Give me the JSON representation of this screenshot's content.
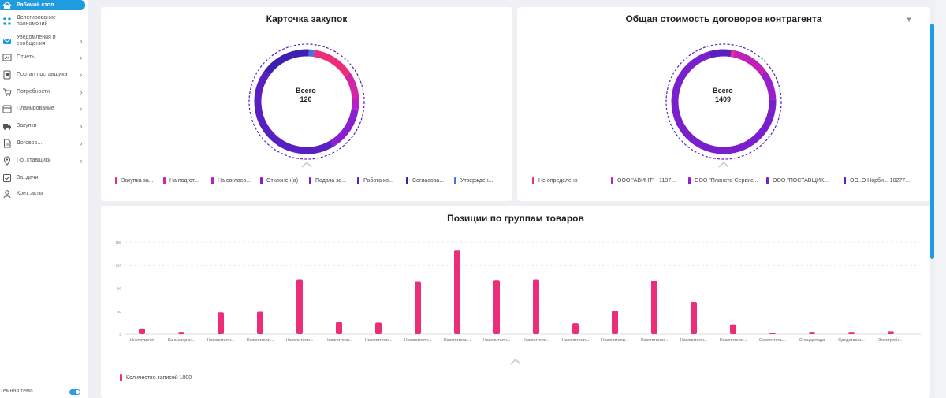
{
  "sidebar": {
    "items": [
      {
        "label": "Рабочий стол",
        "icon": "home-icon",
        "active": true
      },
      {
        "label": "Делегирование полномочий",
        "icon": "delegation-icon"
      },
      {
        "label": "Уведомления и сообщения",
        "icon": "mail-icon"
      },
      {
        "label": "Отчеты",
        "icon": "chart-icon"
      },
      {
        "label": "Портал поставщика",
        "icon": "portal-icon"
      },
      {
        "label": "Потребности",
        "icon": "cart-icon"
      },
      {
        "label": "Планирование",
        "icon": "calendar-icon"
      },
      {
        "label": "Закупки",
        "icon": "truck-icon"
      },
      {
        "label": "Договор...",
        "icon": "document-icon"
      },
      {
        "label": "По..ставщики",
        "icon": "location-icon"
      },
      {
        "label": "За..дачи",
        "icon": "task-icon"
      },
      {
        "label": "Конт..акты",
        "icon": "contacts-icon"
      }
    ],
    "theme_label": "Темная тема"
  },
  "colors": {
    "accent": "#1f9be0",
    "pink": "#ec2d7a",
    "magenta": "#c021b8",
    "purple": "#8a1fcc",
    "violet": "#6a1fd0",
    "indigo": "#3f1fb0",
    "blue": "#4a6ee6"
  },
  "card1": {
    "title": "Карточка закупок",
    "center_label": "Всего",
    "center_value": "120",
    "legend": [
      {
        "label": "Закупка за...",
        "color": "#ec2d7a"
      },
      {
        "label": "На подгот...",
        "color": "#d424a6"
      },
      {
        "label": "На согласо...",
        "color": "#b521c7"
      },
      {
        "label": "Отклонен(а)",
        "color": "#8a1fcc"
      },
      {
        "label": "Подача за...",
        "color": "#7a1fcc"
      },
      {
        "label": "Работа ко...",
        "color": "#5a1fc0"
      },
      {
        "label": "Согласова...",
        "color": "#3f1fb0"
      },
      {
        "label": "Утвержден...",
        "color": "#4a6ee6"
      }
    ]
  },
  "card2": {
    "title": "Общая стоимость договоров контрагента",
    "center_label": "Всего",
    "center_value": "1409",
    "legend": [
      {
        "label": "Не определено",
        "color": "#ec2d7a"
      },
      {
        "label": "ООО \"АВИНТ\" - 1137...",
        "color": "#c021b8"
      },
      {
        "label": "ООО \"Планета-Сервис...",
        "color": "#9a1fcc"
      },
      {
        "label": "ООО \"ПОСТАВЩИК...",
        "color": "#7a1fcc"
      },
      {
        "label": "ОО..О Норби... 10277...",
        "color": "#5a1fc0"
      }
    ]
  },
  "chart_data": [
    {
      "type": "pie",
      "title": "Карточка закупок",
      "center_text": "Всего 120",
      "categories": [
        "Закупка за...",
        "На подгот...",
        "На согласо...",
        "Отклонен(а)",
        "Подача за...",
        "Работа ко...",
        "Согласова...",
        "Утвержден..."
      ],
      "values": [
        16,
        10,
        4,
        16,
        1,
        52,
        19,
        2
      ]
    },
    {
      "type": "pie",
      "title": "Общая стоимость договоров контрагента",
      "center_text": "Всего 1409",
      "categories": [
        "Не определено",
        "ООО \"АВИНТ\" - 1137...",
        "ООО \"Планета-Сервис...",
        "ООО \"ПОСТАВЩИК...",
        "ОО..О Норби... 10277..."
      ],
      "values": [
        14,
        165,
        130,
        1000,
        100
      ]
    },
    {
      "type": "bar",
      "title": "Позиции по группам товаров",
      "ylim": [
        0,
        160
      ],
      "yticks": [
        "0",
        "40",
        "80",
        "120",
        "160"
      ],
      "categories": [
        "Инструмент",
        "Канцелярск...",
        "Накопители...",
        "Накопители...",
        "Накопители...",
        "Накопители...",
        "Накопители...",
        "Накопители...",
        "Накопители...",
        "Накопители...",
        "Накопители...",
        "Накопители...",
        "Накопители...",
        "Накопители...",
        "Накопители...",
        "Накопители...",
        "Осветитель...",
        "Спецодежда",
        "Средства и...",
        "Электробо..."
      ],
      "series": [
        {
          "name": "Количество записей 1000",
          "values": [
            10,
            4,
            38,
            39,
            95,
            21,
            20,
            91,
            146,
            94,
            95,
            19,
            41,
            93,
            56,
            17,
            2,
            4,
            4,
            5
          ]
        }
      ],
      "legend_label": "Количество записей 1000",
      "grid": true
    }
  ]
}
